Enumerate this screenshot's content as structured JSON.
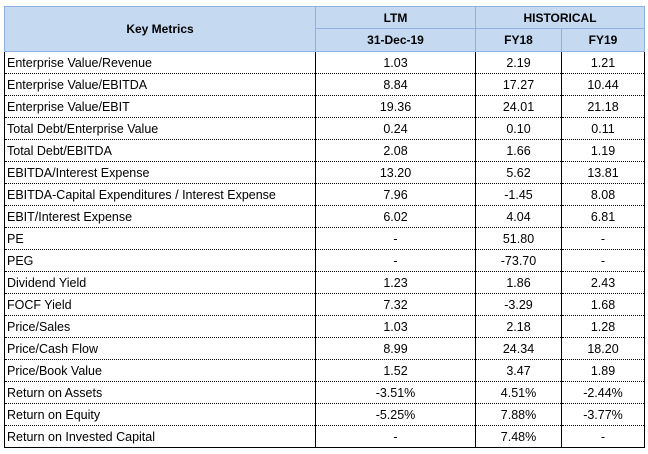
{
  "header": {
    "key_metrics": "Key Metrics",
    "ltm": "LTM",
    "historical": "HISTORICAL",
    "ltm_date": "31-Dec-19",
    "fy18": "FY18",
    "fy19": "FY19"
  },
  "rows": [
    {
      "metric": "Enterprise Value/Revenue",
      "ltm": "1.03",
      "fy18": "2.19",
      "fy19": "1.21"
    },
    {
      "metric": "Enterprise Value/EBITDA",
      "ltm": "8.84",
      "fy18": "17.27",
      "fy19": "10.44"
    },
    {
      "metric": "Enterprise Value/EBIT",
      "ltm": "19.36",
      "fy18": "24.01",
      "fy19": "21.18"
    },
    {
      "metric": "Total Debt/Enterprise Value",
      "ltm": "0.24",
      "fy18": "0.10",
      "fy19": "0.11"
    },
    {
      "metric": "Total Debt/EBITDA",
      "ltm": "2.08",
      "fy18": "1.66",
      "fy19": "1.19"
    },
    {
      "metric": "EBITDA/Interest Expense",
      "ltm": "13.20",
      "fy18": "5.62",
      "fy19": "13.81"
    },
    {
      "metric": "EBITDA-Capital Expenditures / Interest Expense",
      "ltm": "7.96",
      "fy18": "-1.45",
      "fy19": "8.08"
    },
    {
      "metric": "EBIT/Interest Expense",
      "ltm": "6.02",
      "fy18": "4.04",
      "fy19": "6.81"
    },
    {
      "metric": "PE",
      "ltm": "-",
      "fy18": "51.80",
      "fy19": "-"
    },
    {
      "metric": "PEG",
      "ltm": "-",
      "fy18": "-73.70",
      "fy19": "-"
    },
    {
      "metric": "Dividend Yield",
      "ltm": "1.23",
      "fy18": "1.86",
      "fy19": "2.43"
    },
    {
      "metric": "FOCF Yield",
      "ltm": "7.32",
      "fy18": "-3.29",
      "fy19": "1.68"
    },
    {
      "metric": "Price/Sales",
      "ltm": "1.03",
      "fy18": "2.18",
      "fy19": "1.28"
    },
    {
      "metric": "Price/Cash Flow",
      "ltm": "8.99",
      "fy18": "24.34",
      "fy19": "18.20"
    },
    {
      "metric": "Price/Book Value",
      "ltm": "1.52",
      "fy18": "3.47",
      "fy19": "1.89"
    },
    {
      "metric": "Return on Assets",
      "ltm": "-3.51%",
      "fy18": "4.51%",
      "fy19": "-2.44%"
    },
    {
      "metric": "Return on Equity",
      "ltm": "-5.25%",
      "fy18": "7.88%",
      "fy19": "-3.77%"
    },
    {
      "metric": "Return on Invested Capital",
      "ltm": "-",
      "fy18": "7.48%",
      "fy19": "-"
    }
  ]
}
